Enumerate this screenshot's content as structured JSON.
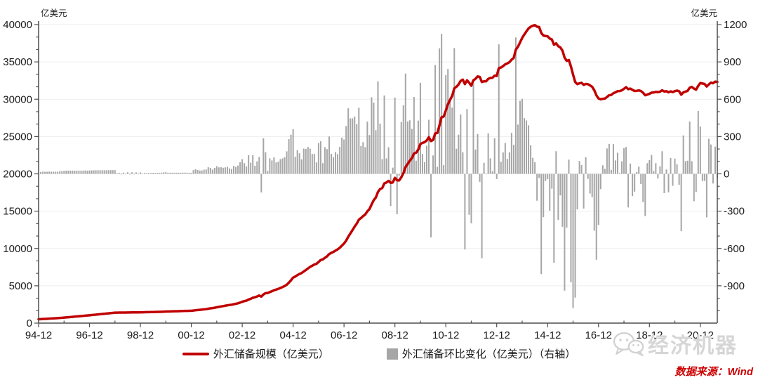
{
  "header": {
    "left_unit": "亿美元",
    "right_unit": "亿美元"
  },
  "legend": {
    "items": [
      {
        "label": "外汇储备规模（亿美元）",
        "marker": "line",
        "color": "#c00000"
      },
      {
        "label": "外汇储备环比变化（亿美元）（右轴）",
        "marker": "square",
        "color": "#a6a6a6"
      }
    ]
  },
  "footer": {
    "source_label": "数据来源：Wind",
    "watermark_text": "经济机器",
    "watermark_icon": "wechat-icon"
  },
  "chart_data": {
    "type": "line+bar combo, dual y-axis",
    "title": "",
    "x": {
      "start": "1994-12",
      "end": "2021-08",
      "freq": "monthly",
      "tick_labels": [
        "94-12",
        "96-12",
        "98-12",
        "00-12",
        "02-12",
        "04-12",
        "06-12",
        "08-12",
        "10-12",
        "12-12",
        "14-12",
        "16-12",
        "18-12",
        "20-12"
      ],
      "tick_month_offsets": [
        0,
        24,
        48,
        72,
        96,
        120,
        144,
        168,
        192,
        216,
        240,
        264,
        288,
        312
      ]
    },
    "y_left": {
      "unit": "亿美元",
      "min": 0,
      "max": 40000,
      "major_step": 5000,
      "tick_labels": [
        "0",
        "5000",
        "10000",
        "15000",
        "20000",
        "25000",
        "30000",
        "35000",
        "40000"
      ]
    },
    "y_right": {
      "unit": "亿美元",
      "min": -1200,
      "max": 1200,
      "major_step": 300,
      "tick_labels": [
        "-900",
        "-600",
        "-300",
        "0",
        "300",
        "600",
        "900",
        "1200"
      ]
    },
    "grid": "horizontal major gridlines only, very light gray",
    "series": [
      {
        "name": "外汇储备规模（亿美元）",
        "type": "line",
        "axis": "left",
        "color": "#c00000",
        "values": [
          516,
          530,
          548,
          565,
          582,
          600,
          617,
          634,
          651,
          668,
          690,
          712,
          736,
          762,
          788,
          814,
          840,
          866,
          892,
          918,
          944,
          970,
          997,
          1023,
          1050,
          1078,
          1106,
          1135,
          1164,
          1193,
          1222,
          1251,
          1280,
          1309,
          1339,
          1369,
          1399,
          1404,
          1412,
          1407,
          1417,
          1413,
          1426,
          1421,
          1434,
          1430,
          1442,
          1438,
          1450,
          1452,
          1460,
          1466,
          1473,
          1480,
          1488,
          1495,
          1504,
          1512,
          1522,
          1534,
          1547,
          1556,
          1565,
          1574,
          1583,
          1592,
          1601,
          1610,
          1620,
          1630,
          1639,
          1648,
          1656,
          1686,
          1723,
          1754,
          1781,
          1808,
          1842,
          1877,
          1930,
          1978,
          2012,
          2060,
          2122,
          2174,
          2227,
          2276,
          2328,
          2384,
          2428,
          2466,
          2530,
          2586,
          2653,
          2746,
          2864,
          2950,
          3010,
          3160,
          3250,
          3400,
          3465,
          3565,
          3700,
          3550,
          3836,
          4010,
          4033,
          4158,
          4266,
          4398,
          4490,
          4588,
          4706,
          4830,
          4964,
          5145,
          5424,
          5739,
          6099,
          6236,
          6426,
          6591,
          6707,
          6910,
          7110,
          7327,
          7530,
          7690,
          7850,
          7942,
          8189,
          8451,
          8537,
          8751,
          8950,
          9250,
          9411,
          9545,
          9720,
          9879,
          10096,
          10387,
          10663,
          11047,
          11574,
          12020,
          12466,
          12927,
          13326,
          13857,
          14081,
          14336,
          14550,
          14970,
          15282,
          15898,
          16471,
          16822,
          17566,
          17970,
          18088,
          18718,
          18842,
          19056,
          18797,
          18847,
          19460,
          19135,
          19120,
          19537,
          20089,
          20895,
          21316,
          21747,
          22108,
          22726,
          22832,
          23260,
          23992,
          24152,
          24245,
          24471,
          24906,
          24395,
          24543,
          25418,
          25474,
          26483,
          27609,
          27679,
          28473,
          29316,
          29914,
          30447,
          31458,
          31660,
          31975,
          32452,
          32625,
          32017,
          32538,
          32209,
          31811,
          32537,
          32732,
          33053,
          32989,
          32311,
          32400,
          32400,
          32726,
          32851,
          32871,
          33158,
          33116,
          34157,
          34254,
          34426,
          34674,
          34794,
          34967,
          35297,
          35530,
          36627,
          37023,
          37610,
          38213,
          38661,
          39090,
          39480,
          39710,
          39839,
          39932,
          39716,
          39683,
          38877,
          38529,
          38472,
          38430,
          38134,
          38015,
          37300,
          37482,
          37111,
          36938,
          36513,
          35574,
          35141,
          35255,
          34383,
          33304,
          32309,
          32023,
          32126,
          32197,
          31918,
          32052,
          32011,
          31852,
          31664,
          31207,
          30516,
          30105,
          29982,
          30051,
          30091,
          30295,
          30536,
          30568,
          30807,
          30915,
          31085,
          31092,
          31193,
          31399,
          31615,
          31345,
          31428,
          31249,
          31106,
          31121,
          31179,
          31097,
          30870,
          30531,
          30617,
          30727,
          30879,
          30902,
          30988,
          30950,
          31010,
          31192,
          31037,
          31072,
          30924,
          31052,
          30956,
          31079,
          31155,
          31067,
          30606,
          30915,
          31017,
          31123,
          31544,
          31646,
          31426,
          31280,
          31785,
          32165,
          32107,
          32050,
          31700,
          31982,
          32218,
          32140,
          32359,
          32321
        ]
      },
      {
        "name": "外汇储备环比变化（亿美元）（右轴）",
        "type": "bar",
        "axis": "right",
        "color": "#a6a6a6",
        "derivation": "first difference (month-over-month change) of series 0 values"
      }
    ]
  }
}
